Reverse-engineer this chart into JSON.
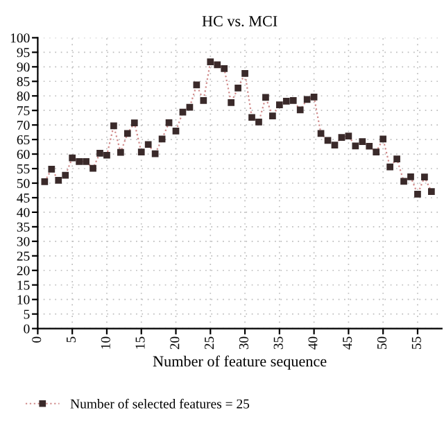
{
  "chart_data": {
    "type": "line",
    "title": "HC vs. MCI",
    "xlabel": "Number of feature sequence",
    "x": [
      1,
      2,
      3,
      4,
      5,
      6,
      7,
      8,
      9,
      10,
      11,
      12,
      13,
      14,
      15,
      16,
      17,
      18,
      19,
      20,
      21,
      22,
      23,
      24,
      25,
      26,
      27,
      28,
      29,
      30,
      31,
      32,
      33,
      34,
      35,
      36,
      37,
      38,
      39,
      40,
      41,
      42,
      43,
      44,
      45,
      46,
      47,
      48,
      49,
      50,
      51,
      52,
      53,
      54,
      55,
      56,
      57
    ],
    "series": [
      {
        "name": "Number of selected features = 25",
        "color": "#d08a8a",
        "values": [
          50.5,
          54.8,
          51,
          52.7,
          58.7,
          57.4,
          57.4,
          55.1,
          60.3,
          59.6,
          69.7,
          60.6,
          67.1,
          70.7,
          60.7,
          63.3,
          60.1,
          65.2,
          70.8,
          67.9,
          74.4,
          76.1,
          83.8,
          78.4,
          91.7,
          90.7,
          89.4,
          77.7,
          82.7,
          87.7,
          72.6,
          71,
          79.5,
          73.1,
          76.9,
          78.2,
          78.4,
          75.2,
          78.8,
          79.6,
          67.1,
          64.7,
          63.1,
          65.7,
          66.2,
          62.8,
          64.3,
          62.7,
          60.7,
          65.2,
          55.6,
          58.3,
          50.6,
          52.2,
          46.2,
          52.1,
          47.1
        ]
      }
    ],
    "xlim": [
      0,
      58.5
    ],
    "xticks": [
      0,
      5,
      10,
      15,
      20,
      25,
      30,
      35,
      40,
      45,
      50,
      55
    ],
    "ylim": [
      0,
      100
    ],
    "yticks": [
      0,
      5,
      10,
      15,
      20,
      25,
      30,
      35,
      40,
      45,
      50,
      55,
      60,
      65,
      70,
      75,
      80,
      85,
      90,
      95,
      100
    ],
    "grid": true,
    "legend": "bottom left",
    "marker": "square",
    "line_style": "dotted"
  }
}
